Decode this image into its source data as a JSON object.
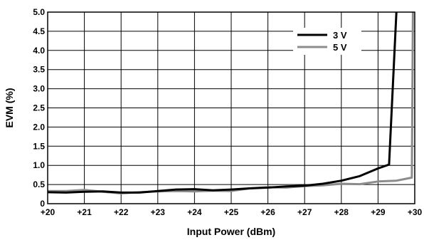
{
  "chart_data": {
    "type": "line",
    "title": "",
    "xlabel": "Input Power (dBm)",
    "ylabel": "EVM (%)",
    "xlim": [
      20,
      30
    ],
    "ylim": [
      0,
      5.0
    ],
    "x_ticks": [
      20,
      21,
      22,
      23,
      24,
      25,
      26,
      27,
      28,
      29,
      30
    ],
    "x_tick_labels": [
      "+20",
      "+21",
      "+22",
      "+23",
      "+24",
      "+25",
      "+26",
      "+27",
      "+28",
      "+29",
      "+30"
    ],
    "y_ticks": [
      0,
      0.5,
      1.0,
      1.5,
      2.0,
      2.5,
      3.0,
      3.5,
      4.0,
      4.5,
      5.0
    ],
    "y_tick_labels": [
      "0",
      "0.5",
      "1.0",
      "1.5",
      "2.0",
      "2.5",
      "3.0",
      "3.5",
      "4.0",
      "4.5",
      "5.0"
    ],
    "grid": true,
    "legend_position": "top-right",
    "series": [
      {
        "name": "3 V",
        "color": "#000000",
        "x": [
          20,
          20.5,
          21,
          21.5,
          22,
          22.5,
          23,
          23.5,
          24,
          24.5,
          25,
          25.5,
          26,
          26.5,
          27,
          27.5,
          28,
          28.5,
          29,
          29.3,
          29.5
        ],
        "y": [
          0.3,
          0.29,
          0.31,
          0.32,
          0.29,
          0.29,
          0.33,
          0.37,
          0.38,
          0.35,
          0.37,
          0.4,
          0.42,
          0.45,
          0.47,
          0.52,
          0.6,
          0.72,
          0.92,
          1.02,
          5.0
        ]
      },
      {
        "name": "5 V",
        "color": "#8c8c8c",
        "x": [
          20,
          20.5,
          21,
          21.5,
          22,
          22.5,
          23,
          23.5,
          24,
          24.5,
          25,
          25.5,
          26,
          26.5,
          27,
          27.5,
          28,
          28.5,
          29,
          29.5,
          29.92,
          29.95
        ],
        "y": [
          0.33,
          0.33,
          0.36,
          0.31,
          0.27,
          0.3,
          0.32,
          0.33,
          0.32,
          0.34,
          0.33,
          0.4,
          0.43,
          0.42,
          0.46,
          0.48,
          0.52,
          0.51,
          0.58,
          0.6,
          0.68,
          5.0
        ]
      }
    ]
  }
}
